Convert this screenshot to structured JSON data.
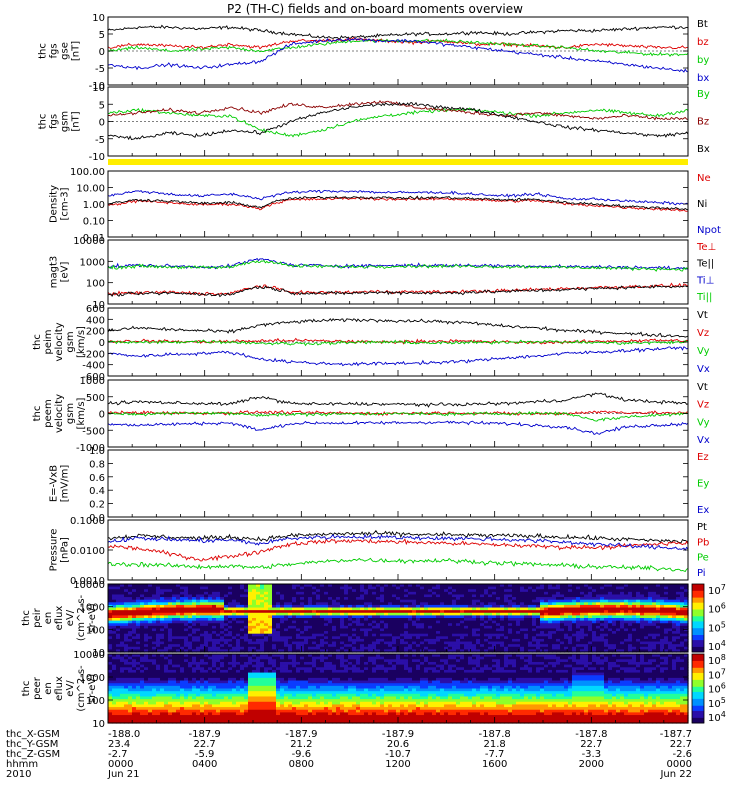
{
  "title": "P2 (TH-C) fields and on-board moments overview",
  "chart_data": [
    {
      "type": "line",
      "ylabel": [
        "thc",
        "fgs",
        "gse",
        "[nT]"
      ],
      "yticks": [
        "10",
        "5",
        "0",
        "-5",
        "-10"
      ],
      "ylim": [
        -10,
        10
      ],
      "series": [
        {
          "name": "Bt",
          "color": "#000000",
          "values": [
            6,
            7,
            7,
            6.5,
            7,
            6,
            5,
            4,
            4,
            4.5,
            5,
            5,
            5.5,
            5,
            5.5,
            6,
            6,
            6.5,
            7,
            7
          ]
        },
        {
          "name": "bz",
          "color": "#dd0000",
          "values": [
            1,
            2,
            1.5,
            1,
            2,
            1,
            3,
            3,
            3.5,
            3,
            2.5,
            3,
            2,
            2,
            1.5,
            1,
            2,
            1.5,
            1,
            1
          ]
        },
        {
          "name": "by",
          "color": "#00cc00",
          "values": [
            0,
            1,
            0,
            0.5,
            1,
            0,
            1,
            2,
            3,
            3,
            3,
            3,
            2.5,
            2,
            1.5,
            1,
            0,
            -0.5,
            -1,
            -1
          ]
        },
        {
          "name": "bx",
          "color": "#0000cc",
          "values": [
            -4,
            -5,
            -4,
            -5,
            -4,
            -3,
            2,
            3,
            3.5,
            3,
            3,
            2,
            1,
            0,
            -1,
            -2,
            -3,
            -4,
            -5,
            -6
          ]
        }
      ]
    },
    {
      "type": "line",
      "ylabel": [
        "thc",
        "fgs",
        "gsm",
        "[nT]"
      ],
      "yticks": [
        "10",
        "5",
        "0",
        "-5",
        "-10"
      ],
      "ylim": [
        -12,
        12
      ],
      "series": [
        {
          "name": "By",
          "color": "#00cc00",
          "values": [
            3,
            4,
            3,
            2,
            2,
            -3,
            -5,
            -3,
            0,
            2,
            3,
            4,
            4,
            3,
            2,
            3,
            4,
            3,
            2,
            4
          ]
        },
        {
          "name": "Bz",
          "color": "#8b0000",
          "values": [
            2,
            3,
            4,
            3,
            5,
            3,
            6,
            5,
            6,
            7,
            5,
            4,
            3,
            2,
            3,
            2,
            1,
            2,
            1,
            1
          ]
        },
        {
          "name": "Bx",
          "color": "#000000",
          "values": [
            -5,
            -6,
            -4,
            -5,
            -3,
            -4,
            0,
            3,
            5,
            6,
            6,
            5,
            4,
            2,
            0,
            -2,
            -3,
            -4,
            -5,
            -4
          ]
        }
      ]
    },
    {
      "type": "line",
      "ylabel": [
        "Density",
        "[cm-3]"
      ],
      "yticks": [
        "100.00",
        "10.00",
        "1.00",
        "0.10",
        "0.01"
      ],
      "ylim": [
        0.01,
        100
      ],
      "log": true,
      "series": [
        {
          "name": "Ne",
          "color": "#dd0000",
          "values": [
            0.8,
            1.5,
            1.2,
            0.9,
            1.0,
            0.5,
            1.8,
            2.0,
            2.2,
            2.0,
            1.9,
            2.1,
            1.8,
            1.5,
            1.6,
            1.0,
            0.8,
            0.6,
            0.5,
            0.4
          ]
        },
        {
          "name": "Ni",
          "color": "#000000",
          "values": [
            1.0,
            1.8,
            1.5,
            1.1,
            1.2,
            0.6,
            2.2,
            2.5,
            2.6,
            2.4,
            2.3,
            2.5,
            2.1,
            1.8,
            1.9,
            1.2,
            1.0,
            0.7,
            0.6,
            0.5
          ]
        },
        {
          "name": "Npot",
          "color": "#0000cc",
          "values": [
            3,
            6,
            4,
            3,
            4,
            2,
            5,
            6,
            6,
            5,
            5,
            5,
            4,
            3,
            4,
            2,
            2,
            1.5,
            1.2,
            1.0
          ]
        }
      ]
    },
    {
      "type": "line",
      "ylabel": [
        "magt3",
        "[eV]"
      ],
      "yticks": [
        "10000",
        "1000",
        "100",
        "10"
      ],
      "ylim": [
        8,
        10000
      ],
      "log": true,
      "series": [
        {
          "name": "Te⊥",
          "color": "#dd0000",
          "values": [
            25,
            28,
            30,
            26,
            24,
            60,
            30,
            28,
            30,
            32,
            31,
            30,
            33,
            35,
            40,
            45,
            50,
            55,
            60,
            65
          ]
        },
        {
          "name": "Te||",
          "color": "#000000",
          "values": [
            22,
            25,
            27,
            24,
            22,
            55,
            28,
            26,
            27,
            29,
            28,
            27,
            30,
            32,
            36,
            40,
            45,
            50,
            55,
            60
          ]
        },
        {
          "name": "Ti⊥",
          "color": "#0000cc",
          "values": [
            500,
            600,
            550,
            500,
            520,
            1200,
            600,
            580,
            560,
            580,
            600,
            580,
            590,
            560,
            550,
            520,
            500,
            480,
            450,
            420
          ]
        },
        {
          "name": "Ti||",
          "color": "#00cc00",
          "values": [
            450,
            550,
            500,
            460,
            480,
            1000,
            550,
            530,
            510,
            530,
            550,
            530,
            540,
            510,
            500,
            470,
            450,
            420,
            400,
            380
          ]
        }
      ]
    },
    {
      "type": "line",
      "ylabel": [
        "thc",
        "peim",
        "velocity",
        "gsm",
        "[km/s]"
      ],
      "yticks": [
        "600",
        "400",
        "200",
        "0",
        "-200",
        "-400",
        "-600"
      ],
      "ylim": [
        -600,
        600
      ],
      "series": [
        {
          "name": "Vt",
          "color": "#000000",
          "values": [
            200,
            250,
            220,
            200,
            180,
            300,
            350,
            380,
            390,
            380,
            370,
            360,
            330,
            280,
            250,
            200,
            180,
            150,
            120,
            100
          ]
        },
        {
          "name": "Vz",
          "color": "#dd0000",
          "values": [
            10,
            20,
            10,
            0,
            10,
            20,
            30,
            20,
            10,
            0,
            10,
            20,
            10,
            0,
            -10,
            0,
            10,
            20,
            30,
            20
          ]
        },
        {
          "name": "Vy",
          "color": "#00cc00",
          "values": [
            0,
            -10,
            0,
            10,
            0,
            -20,
            -30,
            -20,
            -10,
            0,
            -10,
            -20,
            -10,
            0,
            10,
            0,
            -10,
            -20,
            -10,
            0
          ]
        },
        {
          "name": "Vx",
          "color": "#0000cc",
          "values": [
            -200,
            -250,
            -220,
            -200,
            -180,
            -300,
            -350,
            -380,
            -390,
            -380,
            -370,
            -360,
            -330,
            -280,
            -250,
            -200,
            -180,
            -150,
            -120,
            -100
          ]
        }
      ]
    },
    {
      "type": "line",
      "ylabel": [
        "thc",
        "peem",
        "velocity",
        "gsm",
        "[km/s]"
      ],
      "yticks": [
        "1000",
        "500",
        "0",
        "-500",
        "-1000"
      ],
      "ylim": [
        -1000,
        1000
      ],
      "series": [
        {
          "name": "Vt",
          "color": "#000000",
          "values": [
            300,
            350,
            320,
            300,
            280,
            500,
            300,
            280,
            290,
            280,
            270,
            260,
            280,
            300,
            350,
            400,
            600,
            400,
            350,
            300
          ]
        },
        {
          "name": "Vz",
          "color": "#dd0000",
          "values": [
            20,
            30,
            20,
            10,
            20,
            40,
            30,
            20,
            10,
            0,
            10,
            20,
            10,
            0,
            -10,
            0,
            50,
            30,
            20,
            10
          ]
        },
        {
          "name": "Vy",
          "color": "#00cc00",
          "values": [
            0,
            -20,
            0,
            20,
            0,
            -40,
            -30,
            -20,
            -10,
            0,
            -10,
            -20,
            -10,
            0,
            10,
            0,
            -200,
            -100,
            -50,
            0
          ]
        },
        {
          "name": "Vx",
          "color": "#0000cc",
          "values": [
            -300,
            -350,
            -320,
            -300,
            -280,
            -500,
            -300,
            -280,
            -290,
            -280,
            -270,
            -260,
            -280,
            -300,
            -350,
            -400,
            -600,
            -400,
            -350,
            -300
          ]
        }
      ]
    },
    {
      "type": "line",
      "ylabel": [
        "E=-VxB",
        "[mV/m]"
      ],
      "yticks": [
        "1.0",
        "0.8",
        "0.6",
        "0.4",
        "0.2",
        "0.0"
      ],
      "ylim": [
        0,
        1
      ],
      "series": [
        {
          "name": "Ez",
          "color": "#dd0000",
          "values": []
        },
        {
          "name": "Ey",
          "color": "#00cc00",
          "values": []
        },
        {
          "name": "Ex",
          "color": "#0000cc",
          "values": []
        }
      ]
    },
    {
      "type": "line",
      "ylabel": [
        "Pressure",
        "[nPa]"
      ],
      "yticks": [
        "0.1000",
        "0.0100",
        "0.0010"
      ],
      "ylim": [
        0.0005,
        0.1
      ],
      "log": true,
      "series": [
        {
          "name": "Pt",
          "color": "#000000",
          "values": [
            0.02,
            0.025,
            0.022,
            0.02,
            0.022,
            0.018,
            0.025,
            0.028,
            0.03,
            0.03,
            0.028,
            0.027,
            0.026,
            0.025,
            0.024,
            0.022,
            0.02,
            0.018,
            0.016,
            0.015
          ]
        },
        {
          "name": "Pb",
          "color": "#dd0000",
          "values": [
            0.01,
            0.008,
            0.005,
            0.003,
            0.004,
            0.006,
            0.012,
            0.015,
            0.016,
            0.015,
            0.014,
            0.013,
            0.012,
            0.011,
            0.01,
            0.009,
            0.009,
            0.01,
            0.012,
            0.013
          ]
        },
        {
          "name": "Pe",
          "color": "#00cc00",
          "values": [
            0.002,
            0.002,
            0.0018,
            0.0016,
            0.0017,
            0.0015,
            0.002,
            0.0025,
            0.003,
            0.0028,
            0.0027,
            0.0028,
            0.0025,
            0.0022,
            0.002,
            0.0018,
            0.0016,
            0.0015,
            0.0014,
            0.0012
          ]
        },
        {
          "name": "Pi",
          "color": "#0000cc",
          "values": [
            0.015,
            0.02,
            0.018,
            0.016,
            0.017,
            0.012,
            0.02,
            0.022,
            0.023,
            0.022,
            0.021,
            0.02,
            0.019,
            0.018,
            0.016,
            0.014,
            0.012,
            0.01,
            0.009,
            0.008
          ]
        }
      ]
    },
    {
      "type": "heatmap",
      "ylabel": [
        "thc",
        "peir",
        "en",
        "eflux",
        "eV/",
        "(cm^2-s-",
        "sr-eV)"
      ],
      "yticks": [
        "10000",
        "1000",
        "100",
        "10"
      ],
      "colorbar_ticks": [
        "10^7",
        "10^6",
        "10^5",
        "10^4"
      ]
    },
    {
      "type": "heatmap",
      "ylabel": [
        "thc",
        "peer",
        "en",
        "eflux",
        "eV/",
        "(cm^2-s-",
        "sr-eV)"
      ],
      "yticks": [
        "10000",
        "1000",
        "100",
        "10"
      ],
      "colorbar_ticks": [
        "10^8",
        "10^7",
        "10^6",
        "10^5",
        "10^4"
      ]
    }
  ],
  "x_axis": {
    "rows": [
      {
        "label": "thc_X-GSM",
        "values": [
          "-188.0",
          "-187.9",
          "-187.9",
          "-187.9",
          "-187.8",
          "-187.8",
          "-187.7"
        ]
      },
      {
        "label": "thc_Y-GSM",
        "values": [
          "23.4",
          "22.7",
          "21.2",
          "20.6",
          "21.8",
          "22.7",
          "22.7"
        ]
      },
      {
        "label": "thc_Z-GSM",
        "values": [
          "-2.7",
          "-5.9",
          "-9.6",
          "-10.7",
          "-7.7",
          "-3.3",
          "-2.6"
        ]
      },
      {
        "label": "hhmm",
        "values": [
          "0000",
          "0400",
          "0800",
          "1200",
          "1600",
          "2000",
          "0000"
        ]
      },
      {
        "label": "2010",
        "values": [
          "Jun 21",
          "",
          "",
          "",
          "",
          "",
          "Jun 22"
        ]
      }
    ]
  }
}
